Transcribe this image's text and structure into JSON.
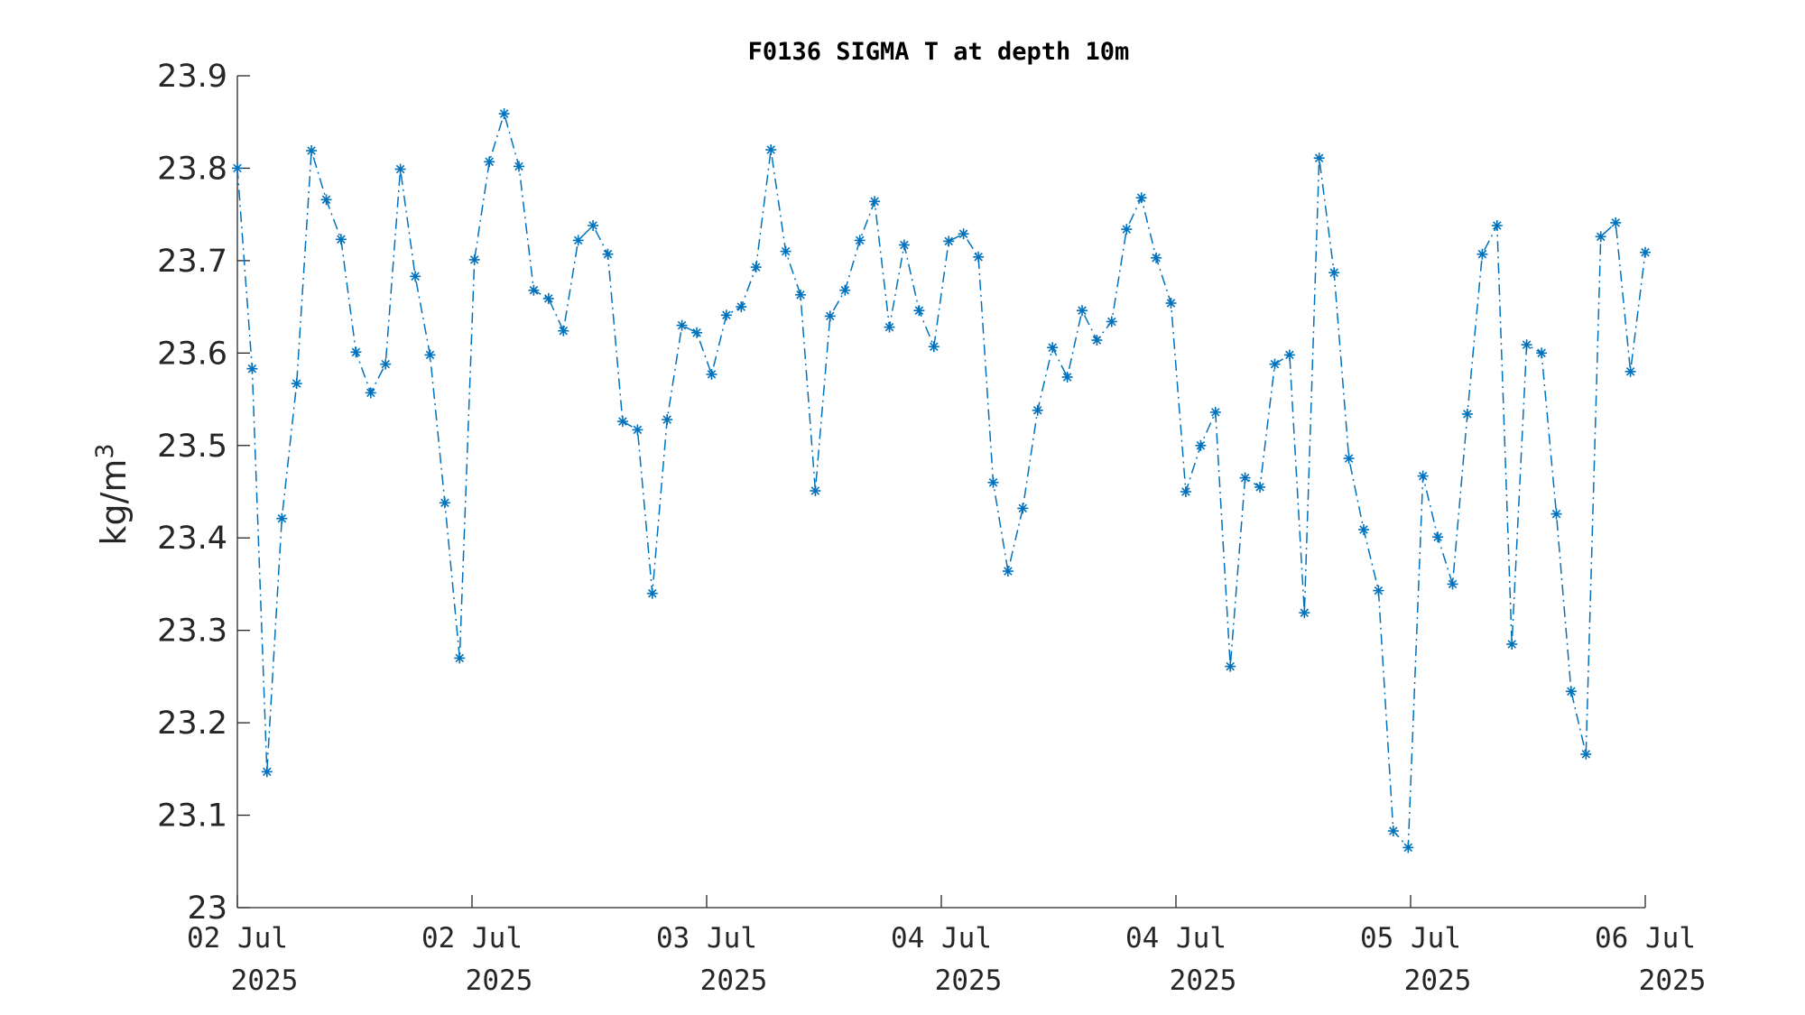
{
  "chart_data": {
    "type": "line",
    "title": "F0136 SIGMA T at depth 10m",
    "ylabel": "kg/m",
    "ylabel_superscript": "3",
    "xlabel": "",
    "ylim": [
      23.0,
      23.9
    ],
    "yticks": [
      "23",
      "23.1",
      "23.2",
      "23.3",
      "23.4",
      "23.5",
      "23.6",
      "23.7",
      "23.8",
      "23.9"
    ],
    "xlim_hours": [
      0,
      72
    ],
    "xticks": [
      {
        "line1": "02 Jul",
        "line2": "2025"
      },
      {
        "line1": "02 Jul",
        "line2": "2025"
      },
      {
        "line1": "03 Jul",
        "line2": "2025"
      },
      {
        "line1": "04 Jul",
        "line2": "2025"
      },
      {
        "line1": "04 Jul",
        "line2": "2025"
      },
      {
        "line1": "05 Jul",
        "line2": "2025"
      },
      {
        "line1": "06 Jul",
        "line2": "2025"
      }
    ],
    "grid": false,
    "marker": "asterisk",
    "line_style": "dash-dot",
    "color": "#0072bd",
    "series": [
      {
        "values": [
          23.8,
          23.583,
          23.147,
          23.421,
          23.567,
          23.819,
          23.766,
          23.723,
          23.601,
          23.557,
          23.588,
          23.799,
          23.683,
          23.598,
          23.438,
          23.27,
          23.701,
          23.807,
          23.859,
          23.802,
          23.668,
          23.659,
          23.624,
          23.722,
          23.738,
          23.707,
          23.526,
          23.517,
          23.34,
          23.528,
          23.63,
          23.622,
          23.577,
          23.641,
          23.65,
          23.693,
          23.82,
          23.71,
          23.663,
          23.451,
          23.64,
          23.668,
          23.722,
          23.764,
          23.628,
          23.717,
          23.646,
          23.607,
          23.721,
          23.729,
          23.704,
          23.46,
          23.364,
          23.432,
          23.538,
          23.606,
          23.574,
          23.646,
          23.614,
          23.634,
          23.734,
          23.768,
          23.703,
          23.654,
          23.45,
          23.5,
          23.536,
          23.261,
          23.465,
          23.455,
          23.588,
          23.598,
          23.319,
          23.811,
          23.687,
          23.486,
          23.409,
          23.343,
          23.083,
          23.065,
          23.467,
          23.401,
          23.35,
          23.534,
          23.707,
          23.738,
          23.285,
          23.609,
          23.6,
          23.426,
          23.234,
          23.166,
          23.726,
          23.741,
          23.58,
          23.709
        ]
      }
    ]
  }
}
